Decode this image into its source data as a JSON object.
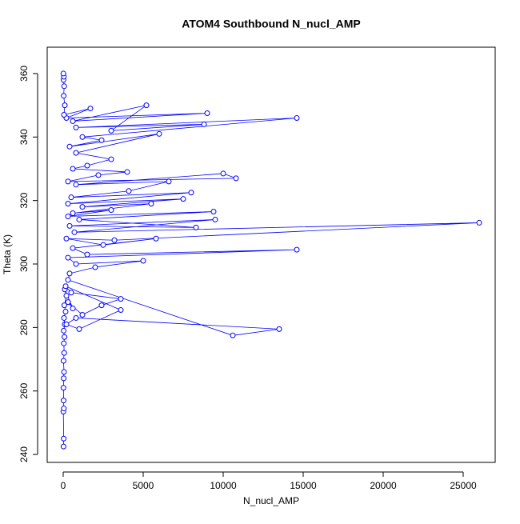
{
  "chart_data": {
    "type": "line",
    "title": "ATOM4 Southbound N_nucl_AMP",
    "x_label": "N_nucl_AMP",
    "y_label": "Theta (K)",
    "marker": "open-circle",
    "xlim": [
      -1000,
      27000
    ],
    "ylim": [
      237.5,
      368.3
    ],
    "xticks": [
      0,
      5000,
      10000,
      15000,
      20000,
      25000
    ],
    "yticks": [
      240,
      260,
      280,
      300,
      320,
      340,
      360
    ],
    "series": [
      {
        "color": "#0000ff",
        "x": [
          20,
          30,
          10,
          40,
          25,
          15,
          30,
          50,
          20,
          60,
          40,
          80,
          30,
          100,
          50,
          150,
          70,
          200,
          100,
          600,
          300,
          1200,
          2400,
          3600,
          500,
          150,
          3600,
          1000,
          200,
          800,
          13500,
          10600,
          300,
          400,
          2000,
          5000,
          800,
          300,
          14600,
          1500,
          600,
          5800,
          2500,
          200,
          3200,
          26000,
          700,
          9500,
          400,
          8300,
          1000,
          9400,
          300,
          3000,
          600,
          5500,
          1200,
          7500,
          300,
          8000,
          500,
          4100,
          6600,
          800,
          10000,
          10800,
          300,
          2200,
          4000,
          600,
          1500,
          3000,
          800,
          6000,
          400,
          2400,
          1200,
          14600,
          800,
          8800,
          3000,
          5200,
          600,
          9000,
          200,
          1700,
          50,
          100,
          30,
          60,
          20,
          40,
          10
        ],
        "values": [
          242.5,
          245,
          253.5,
          254.5,
          257,
          261,
          264,
          266,
          269.5,
          272,
          275,
          277,
          279,
          281,
          283,
          285,
          287,
          290,
          292,
          286,
          288,
          284,
          287,
          289,
          291,
          293,
          285.5,
          279.5,
          281,
          283,
          279.5,
          277.5,
          295,
          297,
          299,
          301,
          300,
          302,
          304.5,
          303,
          305,
          308,
          306,
          308,
          307.5,
          313,
          310,
          314,
          312,
          311.5,
          314,
          316.5,
          315,
          317,
          316,
          319,
          318,
          320.5,
          319,
          322.5,
          321,
          323,
          326,
          325,
          328.5,
          327,
          326,
          328,
          329,
          330,
          331,
          333,
          335,
          341,
          337,
          339,
          340,
          346,
          343,
          344,
          342,
          350,
          345,
          347.5,
          346,
          349,
          347,
          350,
          353,
          356,
          358,
          359,
          360
        ]
      }
    ]
  }
}
